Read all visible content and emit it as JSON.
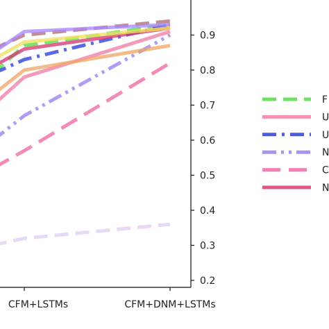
{
  "chart_data": {
    "type": "line",
    "title": "",
    "xlabel": "",
    "ylabel": "",
    "x_categories": [
      "CFM+LSTMs",
      "CFM+DNM+LSTMs"
    ],
    "y_axis_side": "right",
    "ylim": [
      0.18,
      1.0
    ],
    "yticks": [
      0.2,
      0.3,
      0.4,
      0.5,
      0.6,
      0.7,
      0.8,
      0.9
    ],
    "ytick_labels": [
      "0.2",
      "0.3",
      "0.4",
      "0.5",
      "0.6",
      "0.7",
      "0.8",
      "0.9"
    ],
    "grid": false,
    "legend_placement": "right (cropped)",
    "series": [
      {
        "legend_text": "F",
        "color": "#55dd44",
        "style": "dashed",
        "visible_left": 0.79,
        "values": [
          0.87,
          0.93
        ]
      },
      {
        "legend_text": "U",
        "color": "#f07fa8",
        "style": "solid",
        "visible_left": 0.7,
        "values": [
          0.78,
          0.91
        ]
      },
      {
        "legend_text": "U",
        "color": "#2b3fdc",
        "style": "dashdot",
        "visible_left": 0.79,
        "values": [
          0.83,
          0.93
        ]
      },
      {
        "legend_text": "N",
        "color": "#9b7ff0",
        "style": "dashdotdot",
        "visible_left": 0.6,
        "values": [
          0.67,
          0.9
        ]
      },
      {
        "legend_text": "C",
        "color": "#f06aa4",
        "style": "bigdash",
        "visible_left": 0.52,
        "values": [
          0.57,
          0.82
        ]
      },
      {
        "legend_text": "N",
        "color": "#d83a73",
        "style": "solid",
        "visible_left": 0.81,
        "values": [
          0.86,
          0.92
        ]
      },
      {
        "legend_text": "",
        "color": "#b07070",
        "style": "dashed",
        "visible_left": 0.86,
        "values": [
          0.9,
          0.94
        ]
      },
      {
        "legend_text": "",
        "color": "#aa88ff",
        "style": "solid",
        "visible_left": 0.85,
        "values": [
          0.91,
          0.93
        ]
      },
      {
        "legend_text": "",
        "color": "#f0e060",
        "style": "solid",
        "visible_left": 0.83,
        "values": [
          0.88,
          0.92
        ]
      },
      {
        "legend_text": "",
        "color": "#f0a868",
        "style": "solid",
        "visible_left": 0.73,
        "values": [
          0.8,
          0.87
        ]
      },
      {
        "legend_text": "",
        "color": "#e2d0f4",
        "style": "dashed",
        "visible_left": 0.3,
        "values": [
          0.32,
          0.36
        ]
      }
    ]
  }
}
